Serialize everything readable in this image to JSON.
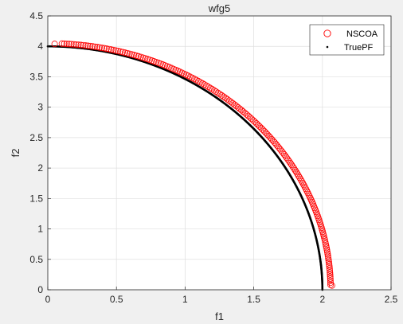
{
  "chart_data": {
    "type": "scatter",
    "title": "wfg5",
    "xlabel": "f1",
    "ylabel": "f2",
    "xlim": [
      0,
      2.5
    ],
    "ylim": [
      0,
      4.5
    ],
    "xticks": [
      "0",
      "0.5",
      "1",
      "1.5",
      "2",
      "2.5"
    ],
    "yticks": [
      "0",
      "0.5",
      "1",
      "1.5",
      "2",
      "2.5",
      "3",
      "3.5",
      "4",
      "4.5"
    ],
    "grid": true,
    "legend_position": "top-right",
    "series": [
      {
        "name": "NSCOA",
        "marker": "open-circle",
        "color": "#ff0000",
        "curve": {
          "a": 2.06,
          "b": 4.05
        },
        "points": [
          [
            0.05,
            4.04
          ],
          [
            2.07,
            0.07
          ]
        ],
        "count": 180
      },
      {
        "name": "TruePF",
        "marker": "dot",
        "color": "#000000",
        "curve": {
          "a": 2.0,
          "b": 4.0
        },
        "count": 600
      }
    ]
  }
}
